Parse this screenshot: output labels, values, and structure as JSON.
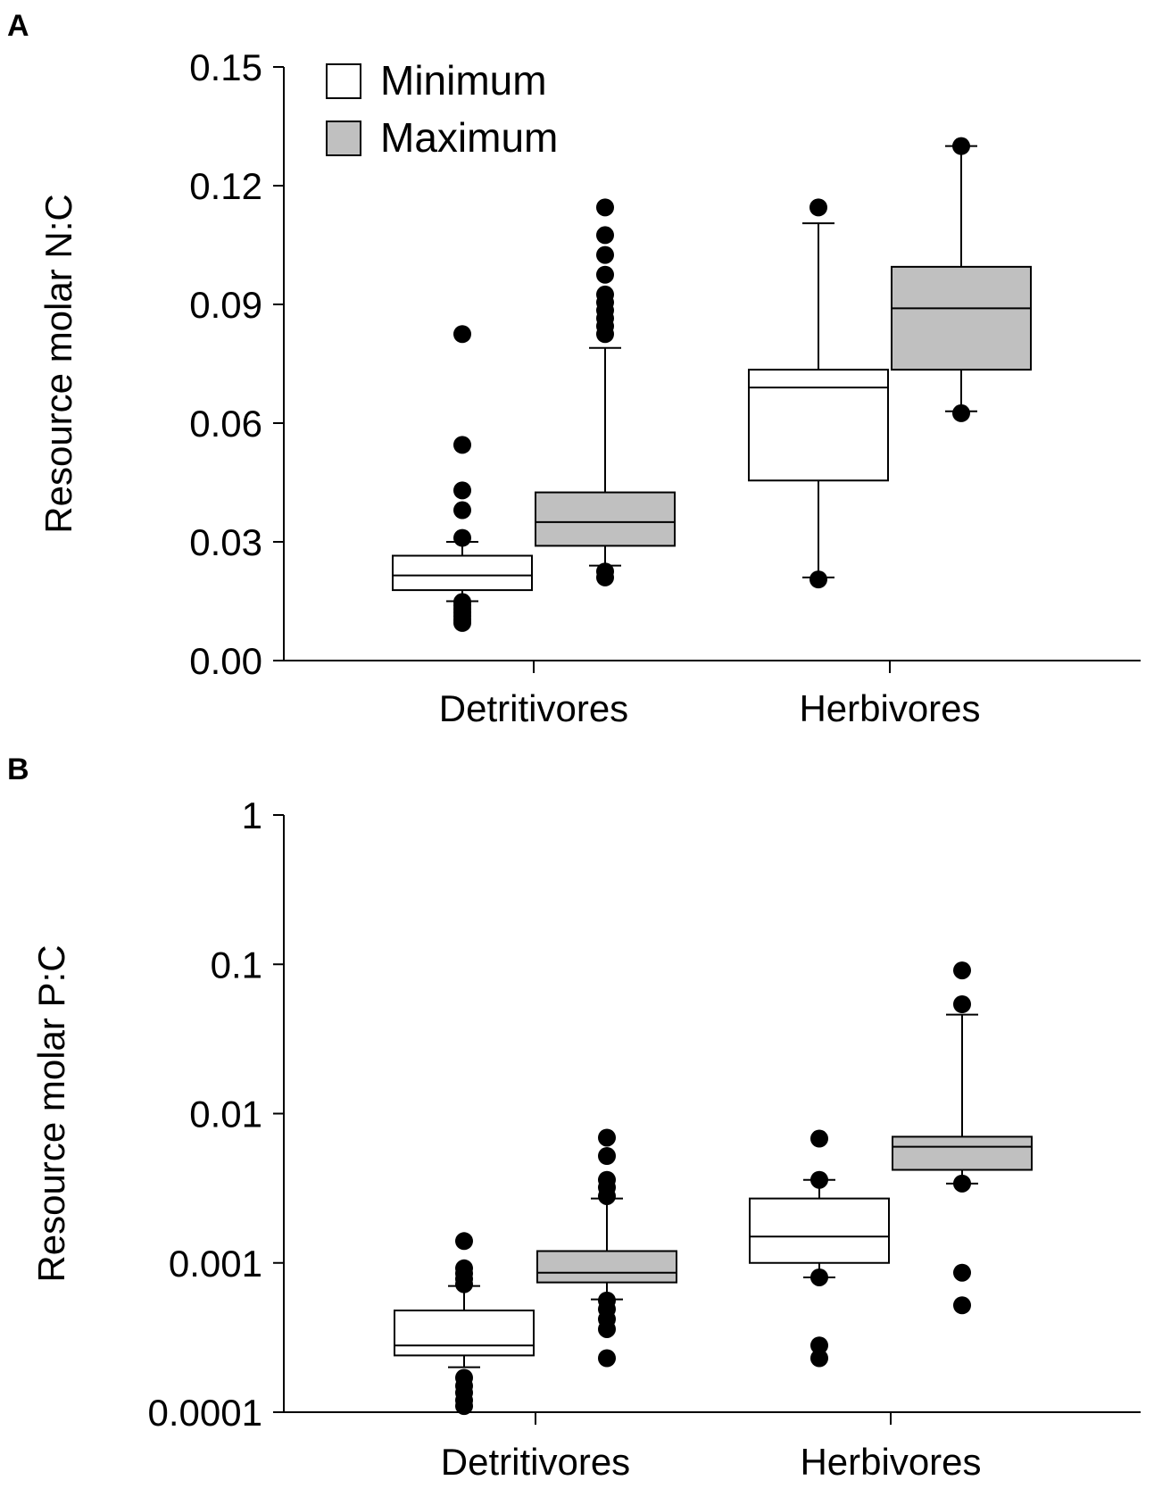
{
  "chart_data": [
    {
      "type": "box",
      "panel_label": "A",
      "ylabel": "Resource molar N:C",
      "yscale": "linear",
      "ylim": [
        0,
        0.15
      ],
      "yticks": [
        0.0,
        0.03,
        0.06,
        0.09,
        0.12,
        0.15
      ],
      "ytick_labels": [
        "0.00",
        "0.03",
        "0.06",
        "0.09",
        "0.12",
        "0.15"
      ],
      "categories": [
        "Detritivores",
        "Herbivores"
      ],
      "legend": {
        "placement": "top-left",
        "entries": [
          {
            "name": "Minimum",
            "color": "#ffffff"
          },
          {
            "name": "Maximum",
            "color": "#c0c0c0"
          }
        ]
      },
      "series": [
        {
          "name": "Minimum",
          "color": "#ffffff",
          "boxes": [
            {
              "category": "Detritivores",
              "whisker_low": 0.015,
              "q1": 0.0178,
              "median": 0.0215,
              "q3": 0.0265,
              "whisker_high": 0.03,
              "outliers": [
                0.0095,
                0.0103,
                0.0112,
                0.0121,
                0.013,
                0.0139,
                0.0148,
                0.031,
                0.038,
                0.043,
                0.0545,
                0.0825
              ]
            },
            {
              "category": "Herbivores",
              "whisker_low": 0.021,
              "q1": 0.0455,
              "median": 0.069,
              "q3": 0.0735,
              "whisker_high": 0.1105,
              "outliers": [
                0.0205,
                0.1145
              ]
            }
          ]
        },
        {
          "name": "Maximum",
          "color": "#c0c0c0",
          "boxes": [
            {
              "category": "Detritivores",
              "whisker_low": 0.024,
              "q1": 0.029,
              "median": 0.035,
              "q3": 0.0425,
              "whisker_high": 0.079,
              "outliers": [
                0.021,
                0.0225,
                0.0825,
                0.0845,
                0.0865,
                0.0885,
                0.0905,
                0.0925,
                0.0975,
                0.1025,
                0.1075,
                0.1145
              ]
            },
            {
              "category": "Herbivores",
              "whisker_low": 0.063,
              "q1": 0.0735,
              "median": 0.089,
              "q3": 0.0995,
              "whisker_high": 0.13,
              "outliers": [
                0.0625,
                0.13
              ]
            }
          ]
        }
      ]
    },
    {
      "type": "box",
      "panel_label": "B",
      "ylabel": "Resource molar P:C",
      "yscale": "log",
      "ylim": [
        0.0001,
        1
      ],
      "yticks": [
        0.0001,
        0.001,
        0.01,
        0.1,
        1
      ],
      "ytick_labels": [
        "0.0001",
        "0.001",
        "0.01",
        "0.1",
        "1"
      ],
      "categories": [
        "Detritivores",
        "Herbivores"
      ],
      "series": [
        {
          "name": "Minimum",
          "color": "#ffffff",
          "boxes": [
            {
              "category": "Detritivores",
              "whisker_low": 0.0002,
              "q1": 0.00024,
              "median": 0.00028,
              "q3": 0.00048,
              "whisker_high": 0.0007,
              "outliers": [
                0.00011,
                0.00012,
                0.000135,
                0.00015,
                0.00017,
                0.00072,
                0.00078,
                0.00085,
                0.00092,
                0.0014
              ]
            },
            {
              "category": "Herbivores",
              "whisker_low": 0.0008,
              "q1": 0.001,
              "median": 0.0015,
              "q3": 0.0027,
              "whisker_high": 0.0036,
              "outliers": [
                0.00023,
                0.00028,
                0.0008,
                0.0036,
                0.0068
              ]
            }
          ]
        },
        {
          "name": "Maximum",
          "color": "#c0c0c0",
          "boxes": [
            {
              "category": "Detritivores",
              "whisker_low": 0.00057,
              "q1": 0.00074,
              "median": 0.00086,
              "q3": 0.0012,
              "whisker_high": 0.0027,
              "outliers": [
                0.00023,
                0.00036,
                0.00042,
                0.00049,
                0.00056,
                0.0028,
                0.0032,
                0.0036,
                0.0052,
                0.0069
              ]
            },
            {
              "category": "Herbivores",
              "whisker_low": 0.0034,
              "q1": 0.0042,
              "median": 0.006,
              "q3": 0.007,
              "whisker_high": 0.046,
              "outliers": [
                0.00052,
                0.00086,
                0.0034,
                0.054,
                0.091
              ]
            }
          ]
        }
      ]
    }
  ]
}
